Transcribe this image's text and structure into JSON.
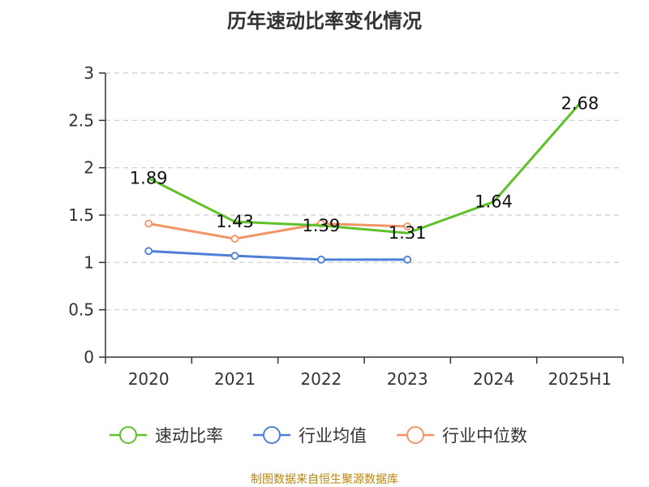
{
  "chart_data": {
    "type": "line",
    "title": "历年速动比率变化情况",
    "categories": [
      "2020",
      "2021",
      "2022",
      "2023",
      "2024",
      "2025H1"
    ],
    "ylim": [
      0,
      3
    ],
    "yticks": [
      0,
      0.5,
      1,
      1.5,
      2,
      2.5,
      3
    ],
    "ytick_labels": [
      "0",
      "0.5",
      "1",
      "1.5",
      "2",
      "2.5",
      "3"
    ],
    "grid": true,
    "legend_position": "bottom",
    "series": [
      {
        "name": "速动比率",
        "color": "#5ec229",
        "values": [
          1.89,
          1.43,
          1.39,
          1.31,
          1.64,
          2.68
        ],
        "labels": [
          "1.89",
          "1.43",
          "1.39",
          "1.31",
          "1.64",
          "2.68"
        ],
        "show_labels": true,
        "show_markers": false
      },
      {
        "name": "行业均值",
        "color": "#4e7fd8",
        "values": [
          1.12,
          1.07,
          1.03,
          1.03,
          null,
          null
        ],
        "show_labels": false,
        "show_markers": true
      },
      {
        "name": "行业中位数",
        "color": "#f29465",
        "values": [
          1.41,
          1.25,
          1.41,
          1.38,
          null,
          null
        ],
        "show_labels": false,
        "show_markers": true
      }
    ]
  },
  "source": "制图数据来自恒生聚源数据库"
}
